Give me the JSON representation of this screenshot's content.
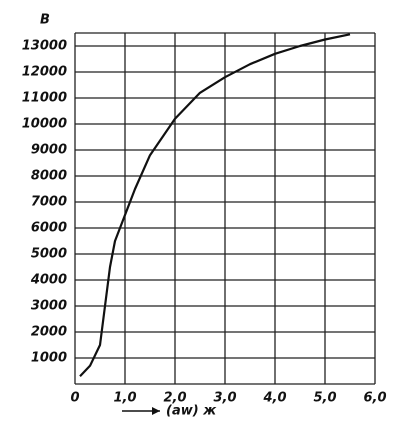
{
  "chart_data": {
    "type": "line",
    "y_label": "B",
    "x_label": "(aw) ж",
    "x": [
      0.1,
      0.3,
      0.5,
      0.6,
      0.7,
      0.8,
      1.0,
      1.2,
      1.5,
      2.0,
      2.5,
      3.0,
      3.5,
      4.0,
      4.5,
      5.0,
      5.5
    ],
    "series": [
      {
        "color": "#111111",
        "values": [
          300,
          700,
          1500,
          3000,
          4500,
          5500,
          6500,
          7500,
          8800,
          10200,
          11200,
          11800,
          12300,
          12700,
          13000,
          13250,
          13450
        ]
      }
    ],
    "xlim": [
      0,
      6
    ],
    "ylim": [
      0,
      13500
    ],
    "xticks": [
      0,
      {
        "value": 1,
        "label": "1,0"
      },
      {
        "value": 2,
        "label": "2,0"
      },
      {
        "value": 3,
        "label": "3,0"
      },
      {
        "value": 4,
        "label": "4,0"
      },
      {
        "value": 5,
        "label": "5,0"
      },
      {
        "value": 6,
        "label": "6,0"
      }
    ],
    "yticks": [
      1000,
      2000,
      3000,
      4000,
      5000,
      6000,
      7000,
      8000,
      9000,
      10000,
      11000,
      12000,
      13000
    ],
    "grid": true
  }
}
